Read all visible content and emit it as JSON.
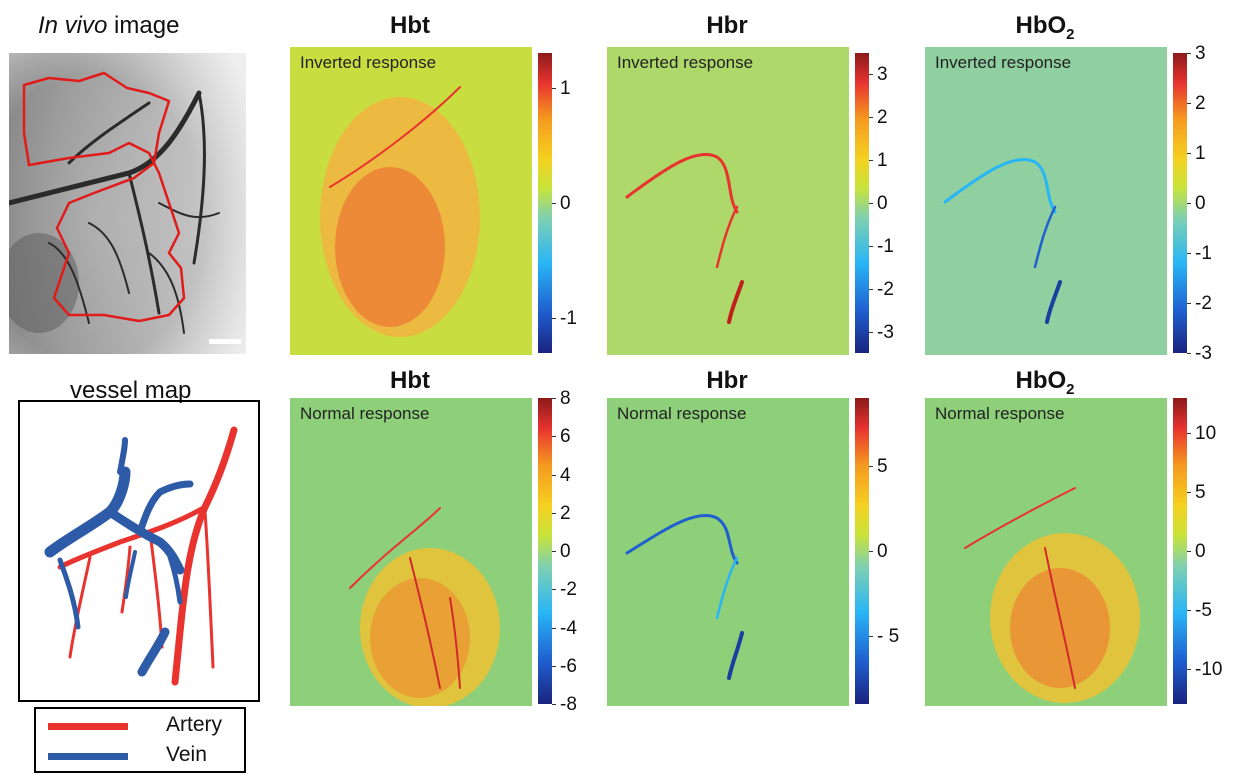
{
  "left": {
    "invivo_title_italic": "In vivo",
    "invivo_title_rest": " image",
    "vessel_title": "vessel map"
  },
  "legend": {
    "items": [
      {
        "label": "Artery",
        "color": "#e8332f"
      },
      {
        "label": "Vein",
        "color": "#2d5ba8"
      }
    ]
  },
  "colors": {
    "artery": "#e8332f",
    "vein": "#2d5ba8",
    "roi": "#e11a1a"
  },
  "rows": [
    {
      "response_label": "Inverted response",
      "panels": [
        {
          "title": "Hbt",
          "title_sub": "",
          "ticks": [
            "1",
            "0",
            "-1"
          ],
          "range": [
            -1.3,
            1.3
          ]
        },
        {
          "title": "Hbr",
          "title_sub": "",
          "ticks": [
            "3",
            "2",
            "1",
            "0",
            "-1",
            "-2",
            "-3"
          ],
          "range": [
            -3.5,
            3.5
          ]
        },
        {
          "title": "HbO",
          "title_sub": "2",
          "ticks": [
            "3",
            "2",
            "1",
            "0",
            "-1",
            "-2",
            "-3"
          ],
          "range": [
            -3,
            3
          ]
        }
      ]
    },
    {
      "response_label": "Normal response",
      "panels": [
        {
          "title": "Hbt",
          "title_sub": "",
          "ticks": [
            "8",
            "6",
            "4",
            "2",
            "0",
            "-2",
            "-4",
            "-6",
            "-8"
          ],
          "range": [
            -8,
            8
          ]
        },
        {
          "title": "Hbr",
          "title_sub": "",
          "ticks": [
            "5",
            "0",
            "- 5"
          ],
          "range": [
            -9,
            9
          ]
        },
        {
          "title": "HbO",
          "title_sub": "2",
          "ticks": [
            "10",
            "5",
            "0",
            "-5",
            "-10"
          ],
          "range": [
            -13,
            13
          ]
        }
      ]
    }
  ]
}
